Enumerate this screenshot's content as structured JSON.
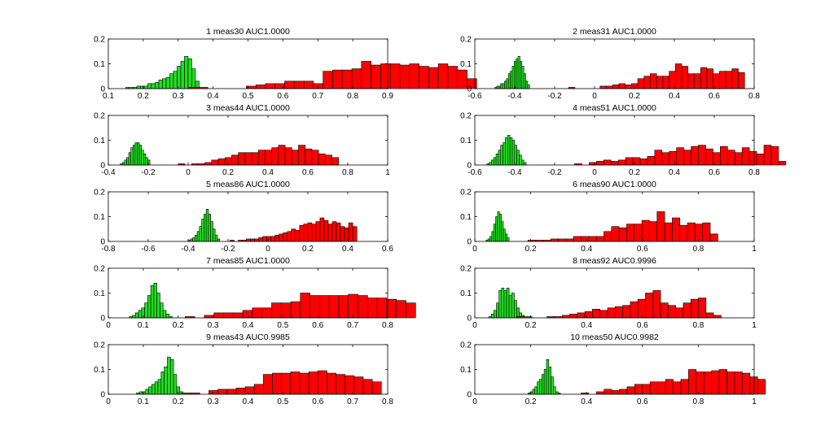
{
  "colors": {
    "green": "#22dd22",
    "red": "#ff0000",
    "edge": "#000000",
    "axis": "#000000"
  },
  "chart_data": [
    {
      "type": "bar",
      "title": "1 meas30 AUC1.0000",
      "xlim": [
        0.1,
        0.9
      ],
      "ylim": [
        0,
        0.2
      ],
      "xticks": [
        "0.1",
        "0.2",
        "0.3",
        "0.4",
        "0.5",
        "0.6",
        "0.7",
        "0.8",
        "0.9"
      ],
      "yticks": [
        "0",
        "0.1",
        "0.2"
      ],
      "series": [
        {
          "color": "green",
          "start": 0.15,
          "width": 0.0105,
          "values": [
            0.005,
            0.005,
            0.005,
            0.01,
            0.01,
            0.01,
            0.02,
            0.02,
            0.025,
            0.035,
            0.04,
            0.045,
            0.06,
            0.07,
            0.09,
            0.11,
            0.13,
            0.12,
            0.08,
            0.03
          ]
        },
        {
          "color": "red",
          "start": 0.33,
          "width": 0.0275,
          "values": [
            0.005,
            0.005,
            0,
            0,
            0,
            0,
            0.01,
            0.015,
            0.02,
            0.02,
            0.03,
            0.03,
            0.03,
            0.02,
            0.07,
            0.075,
            0.075,
            0.08,
            0.11,
            0.095,
            0.1,
            0.1,
            0.095,
            0.1,
            0.09,
            0.085,
            0.1,
            0.09,
            0.075,
            0.04
          ]
        }
      ]
    },
    {
      "type": "bar",
      "title": "2 meas31 AUC1.0000",
      "xlim": [
        -0.6,
        0.8
      ],
      "ylim": [
        0,
        0.2
      ],
      "xticks": [
        "-0.6",
        "-0.4",
        "-0.2",
        "0",
        "0.2",
        "0.4",
        "0.6",
        "0.8"
      ],
      "yticks": [
        "0",
        "0.1",
        "0.2"
      ],
      "series": [
        {
          "color": "green",
          "start": -0.5,
          "width": 0.0097,
          "values": [
            0.005,
            0.01,
            0.01,
            0.02,
            0.02,
            0.03,
            0.04,
            0.06,
            0.07,
            0.09,
            0.11,
            0.12,
            0.13,
            0.11,
            0.09,
            0.06,
            0.03,
            0.015
          ]
        },
        {
          "color": "red",
          "start": -0.13,
          "width": 0.0315,
          "values": [
            0.005,
            0,
            0,
            0,
            0,
            0.01,
            0.01,
            0.015,
            0.02,
            0.015,
            0.02,
            0.04,
            0.05,
            0.06,
            0.05,
            0.05,
            0.07,
            0.1,
            0.09,
            0.06,
            0.06,
            0.085,
            0.08,
            0.06,
            0.07,
            0.07,
            0.08,
            0.065
          ]
        }
      ]
    },
    {
      "type": "bar",
      "title": "3 meas44 AUC1.0000",
      "xlim": [
        -0.4,
        1
      ],
      "ylim": [
        0,
        0.2
      ],
      "xticks": [
        "-0.4",
        "-0.2",
        "0",
        "0.2",
        "0.4",
        "0.6",
        "0.8",
        "1"
      ],
      "yticks": [
        "0",
        "0.1",
        "0.2"
      ],
      "series": [
        {
          "color": "green",
          "start": -0.34,
          "width": 0.0106,
          "values": [
            0.005,
            0.01,
            0.02,
            0.03,
            0.05,
            0.07,
            0.08,
            0.09,
            0.09,
            0.08,
            0.06,
            0.045,
            0.03,
            0.02
          ]
        },
        {
          "color": "red",
          "start": -0.05,
          "width": 0.0335,
          "values": [
            0.005,
            0,
            0.005,
            0.005,
            0.01,
            0.02,
            0.025,
            0.03,
            0.04,
            0.05,
            0.05,
            0.05,
            0.06,
            0.06,
            0.07,
            0.08,
            0.07,
            0.06,
            0.08,
            0.065,
            0.06,
            0.045,
            0.04,
            0.03
          ]
        }
      ]
    },
    {
      "type": "bar",
      "title": "4 meas51 AUC1.0000",
      "xlim": [
        -0.6,
        0.8
      ],
      "ylim": [
        0,
        0.2
      ],
      "xticks": [
        "-0.6",
        "-0.4",
        "-0.2",
        "0",
        "0.2",
        "0.4",
        "0.6",
        "0.8"
      ],
      "yticks": [
        "0",
        "0.1",
        "0.2"
      ],
      "series": [
        {
          "color": "green",
          "start": -0.54,
          "width": 0.0116,
          "values": [
            0.005,
            0.01,
            0.02,
            0.03,
            0.045,
            0.06,
            0.08,
            0.09,
            0.11,
            0.12,
            0.11,
            0.1,
            0.08,
            0.06,
            0.04,
            0.02,
            0.01
          ]
        },
        {
          "color": "red",
          "start": -0.1,
          "width": 0.0365,
          "values": [
            0.005,
            0,
            0.01,
            0.015,
            0.02,
            0.015,
            0.02,
            0.03,
            0.03,
            0.025,
            0.035,
            0.06,
            0.05,
            0.055,
            0.07,
            0.06,
            0.075,
            0.08,
            0.065,
            0.05,
            0.075,
            0.06,
            0.05,
            0.07,
            0.055,
            0.045,
            0.08,
            0.075,
            0.015
          ]
        }
      ]
    },
    {
      "type": "bar",
      "title": "5 meas86 AUC1.0000",
      "xlim": [
        -0.8,
        0.6
      ],
      "ylim": [
        0,
        0.2
      ],
      "xticks": [
        "-0.8",
        "-0.6",
        "-0.4",
        "-0.2",
        "0",
        "0.2",
        "0.4",
        "0.6"
      ],
      "yticks": [
        "0",
        "0.1",
        "0.2"
      ],
      "series": [
        {
          "color": "green",
          "start": -0.4,
          "width": 0.0113,
          "values": [
            0.005,
            0.01,
            0.015,
            0.025,
            0.04,
            0.06,
            0.09,
            0.11,
            0.13,
            0.11,
            0.08,
            0.05,
            0.025,
            0.01
          ]
        },
        {
          "color": "red",
          "start": -0.19,
          "width": 0.0205,
          "values": [
            0.005,
            0,
            0.005,
            0.005,
            0.01,
            0.01,
            0.01,
            0.015,
            0.02,
            0.02,
            0.02,
            0.025,
            0.03,
            0.035,
            0.04,
            0.05,
            0.045,
            0.065,
            0.07,
            0.075,
            0.07,
            0.08,
            0.095,
            0.085,
            0.07,
            0.08,
            0.075,
            0.06,
            0.055,
            0.075,
            0.06
          ]
        }
      ]
    },
    {
      "type": "bar",
      "title": "6 meas90 AUC1.0000",
      "xlim": [
        0,
        1
      ],
      "ylim": [
        0,
        0.2
      ],
      "xticks": [
        "0",
        "0.2",
        "0.4",
        "0.6",
        "0.8",
        "1"
      ],
      "yticks": [
        "0",
        "0.1",
        "0.2"
      ],
      "series": [
        {
          "color": "green",
          "start": 0.04,
          "width": 0.0069,
          "values": [
            0.005,
            0.01,
            0.02,
            0.04,
            0.07,
            0.1,
            0.12,
            0.11,
            0.08,
            0.05,
            0.03,
            0.015
          ]
        },
        {
          "color": "red",
          "start": 0.19,
          "width": 0.0272,
          "values": [
            0.005,
            0.005,
            0.005,
            0.01,
            0.01,
            0.01,
            0.02,
            0.02,
            0.02,
            0.02,
            0.04,
            0.06,
            0.055,
            0.07,
            0.07,
            0.085,
            0.08,
            0.12,
            0.075,
            0.095,
            0.065,
            0.075,
            0.07,
            0.075,
            0.03
          ]
        }
      ]
    },
    {
      "type": "bar",
      "title": "7 meas85 AUC1.0000",
      "xlim": [
        0,
        0.8
      ],
      "ylim": [
        0,
        0.2
      ],
      "xticks": [
        "0",
        "0.1",
        "0.2",
        "0.3",
        "0.4",
        "0.5",
        "0.6",
        "0.7",
        "0.8"
      ],
      "yticks": [
        "0",
        "0.1",
        "0.2"
      ],
      "series": [
        {
          "color": "green",
          "start": 0.06,
          "width": 0.0088,
          "values": [
            0.005,
            0.01,
            0.02,
            0.03,
            0.04,
            0.06,
            0.09,
            0.13,
            0.14,
            0.1,
            0.06,
            0.03,
            0.015,
            0.005
          ]
        },
        {
          "color": "red",
          "start": 0.22,
          "width": 0.0275,
          "values": [
            0.005,
            0,
            0.01,
            0.02,
            0.02,
            0.02,
            0.03,
            0.04,
            0.04,
            0.06,
            0.06,
            0.065,
            0.1,
            0.09,
            0.09,
            0.09,
            0.09,
            0.095,
            0.09,
            0.08,
            0.08,
            0.075,
            0.07,
            0.06
          ]
        }
      ]
    },
    {
      "type": "bar",
      "title": "8 meas92 AUC0.9996",
      "xlim": [
        0,
        1
      ],
      "ylim": [
        0,
        0.2
      ],
      "xticks": [
        "0",
        "0.2",
        "0.4",
        "0.6",
        "0.8",
        "1"
      ],
      "yticks": [
        "0",
        "0.1",
        "0.2"
      ],
      "series": [
        {
          "color": "green",
          "start": 0.05,
          "width": 0.0091,
          "values": [
            0.005,
            0.015,
            0.03,
            0.06,
            0.11,
            0.12,
            0.11,
            0.12,
            0.09,
            0.1,
            0.07,
            0.04,
            0.02,
            0.01,
            0.005,
            0.005,
            0.005
          ]
        },
        {
          "color": "red",
          "start": 0.15,
          "width": 0.0271,
          "values": [
            0.005,
            0,
            0,
            0,
            0.005,
            0.005,
            0.01,
            0.015,
            0.02,
            0.025,
            0.035,
            0.03,
            0.04,
            0.045,
            0.05,
            0.065,
            0.075,
            0.1,
            0.11,
            0.06,
            0.05,
            0.04,
            0.06,
            0.075,
            0.08,
            0.02,
            0.01
          ]
        }
      ]
    },
    {
      "type": "bar",
      "title": "9 meas43 AUC0.9985",
      "xlim": [
        0,
        0.8
      ],
      "ylim": [
        0,
        0.2
      ],
      "xticks": [
        "0",
        "0.1",
        "0.2",
        "0.3",
        "0.4",
        "0.5",
        "0.6",
        "0.7",
        "0.8"
      ],
      "yticks": [
        "0",
        "0.1",
        "0.2"
      ],
      "series": [
        {
          "color": "green",
          "start": 0.08,
          "width": 0.0089,
          "values": [
            0.005,
            0.01,
            0.01,
            0.02,
            0.03,
            0.04,
            0.05,
            0.06,
            0.09,
            0.11,
            0.15,
            0.14,
            0.08,
            0.03,
            0.01
          ]
        },
        {
          "color": "red",
          "start": 0.21,
          "width": 0.026,
          "values": [
            0.005,
            0.005,
            0,
            0.015,
            0.02,
            0.02,
            0.025,
            0.03,
            0.04,
            0.08,
            0.085,
            0.085,
            0.09,
            0.085,
            0.09,
            0.095,
            0.085,
            0.08,
            0.075,
            0.07,
            0.06,
            0.05
          ]
        }
      ]
    },
    {
      "type": "bar",
      "title": "10 meas50 AUC0.9982",
      "xlim": [
        0,
        1
      ],
      "ylim": [
        0,
        0.2
      ],
      "xticks": [
        "0",
        "0.2",
        "0.4",
        "0.6",
        "0.8",
        "1"
      ],
      "yticks": [
        "0",
        "0.1",
        "0.2"
      ],
      "series": [
        {
          "color": "green",
          "start": 0.19,
          "width": 0.0083,
          "values": [
            0.005,
            0.01,
            0.02,
            0.03,
            0.05,
            0.06,
            0.08,
            0.1,
            0.14,
            0.11,
            0.07,
            0.03,
            0.01,
            0.005
          ]
        },
        {
          "color": "red",
          "start": 0.38,
          "width": 0.0275,
          "values": [
            0.005,
            0,
            0.01,
            0.02,
            0.015,
            0.02,
            0.03,
            0.04,
            0.04,
            0.05,
            0.05,
            0.06,
            0.05,
            0.06,
            0.1,
            0.09,
            0.09,
            0.095,
            0.1,
            0.09,
            0.09,
            0.085,
            0.07,
            0.06
          ]
        }
      ]
    }
  ]
}
